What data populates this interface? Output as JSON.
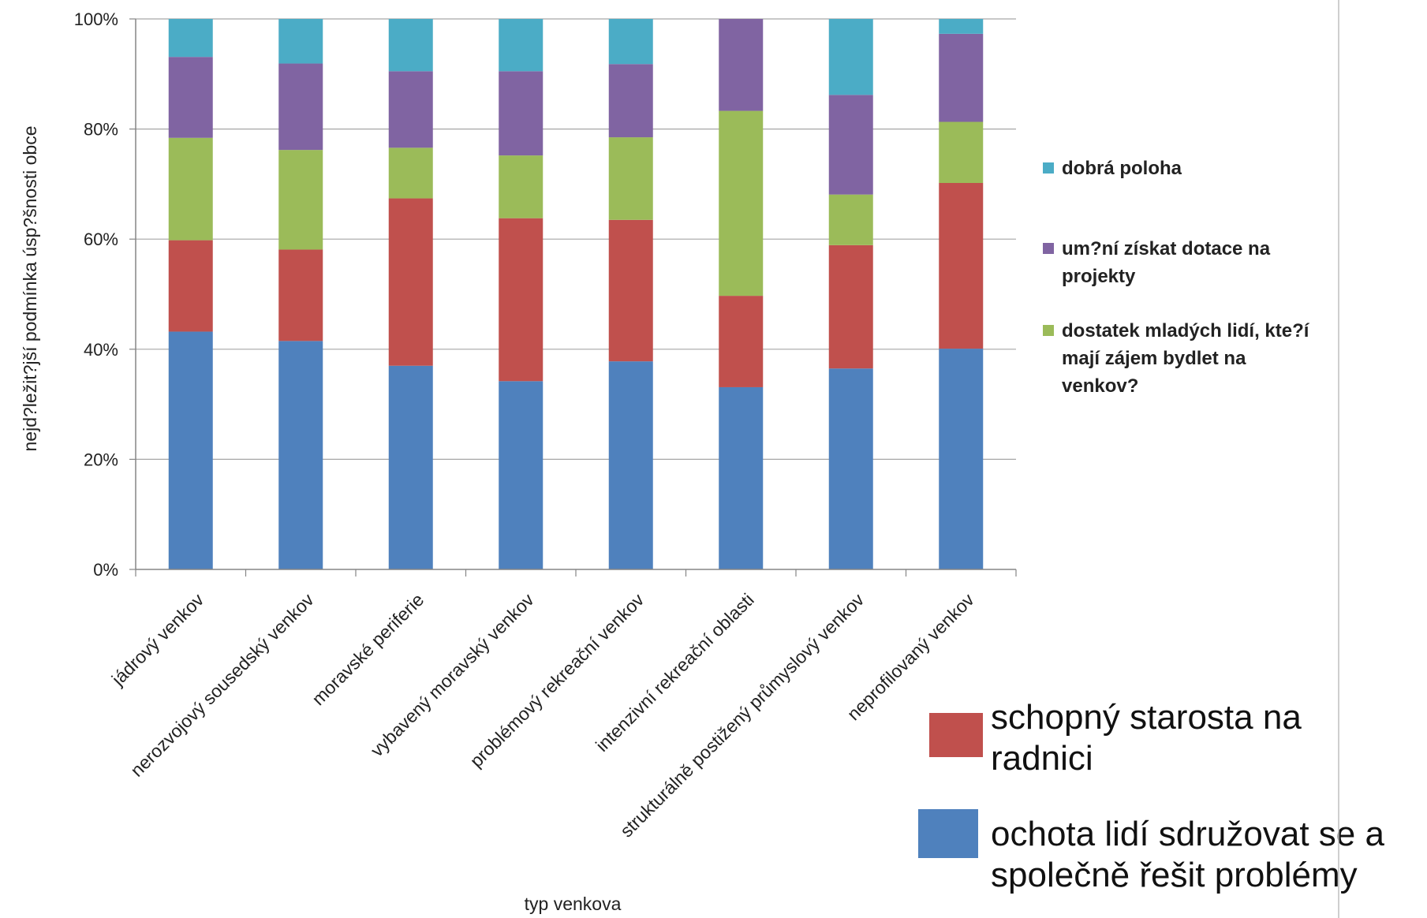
{
  "chart_data": {
    "type": "bar",
    "stacked": true,
    "normalized": true,
    "xlabel": "typ venkova",
    "ylabel": "nejd?ležit?jší podmínka úsp?šnosti obce",
    "ylim": [
      0,
      100
    ],
    "yticks": [
      "0%",
      "20%",
      "40%",
      "60%",
      "80%",
      "100%"
    ],
    "grid": true,
    "legend_position": "right",
    "categories": [
      "jádrový venkov",
      "nerozvojový sousedský venkov",
      "moravské periferie",
      "vybavený moravský venkov",
      "problémový rekreační venkov",
      "intenzivní rekreační oblasti",
      "strukturálně postižený průmyslový venkov",
      "neprofilovaný venkov"
    ],
    "series": [
      {
        "name": "ochota lidí sdružovat se a společně řešit problémy",
        "color": "#4F81BD",
        "values": [
          43.2,
          41.5,
          37.0,
          34.2,
          37.8,
          33.1,
          36.5,
          40.1
        ]
      },
      {
        "name": "schopný starosta na radnici",
        "color": "#C0504D",
        "values": [
          16.6,
          16.6,
          30.4,
          29.6,
          25.7,
          16.6,
          22.4,
          30.1
        ]
      },
      {
        "name": "dostatek mladých lidí, kte?í mají zájem bydlet na venkov?",
        "color": "#9BBB59",
        "values": [
          18.6,
          18.1,
          9.2,
          11.4,
          15.0,
          33.6,
          9.2,
          11.1
        ]
      },
      {
        "name": "um?ní získat dotace na projekty",
        "color": "#8064A2",
        "values": [
          14.7,
          15.7,
          13.9,
          15.3,
          13.3,
          16.7,
          18.1,
          16.0
        ]
      },
      {
        "name": "dobrá poloha",
        "color": "#4BACC6",
        "values": [
          6.9,
          8.1,
          9.5,
          9.5,
          8.2,
          0.0,
          13.8,
          2.7
        ]
      }
    ],
    "legend": {
      "small_entries": [
        {
          "series": 4,
          "lines": [
            "dobrá poloha"
          ]
        },
        {
          "series": 3,
          "lines": [
            "um?ní získat dotace na",
            "projekty"
          ]
        },
        {
          "series": 2,
          "lines": [
            "dostatek mladých lidí, kte?í",
            "mají zájem bydlet na",
            "venkov?"
          ]
        }
      ],
      "large_entries": [
        {
          "series": 1,
          "lines": [
            "schopný starosta na",
            " radnici"
          ]
        },
        {
          "series": 0,
          "lines": [
            "ochota lidí sdružovat se a",
            "společně řešit problémy"
          ]
        }
      ]
    }
  }
}
